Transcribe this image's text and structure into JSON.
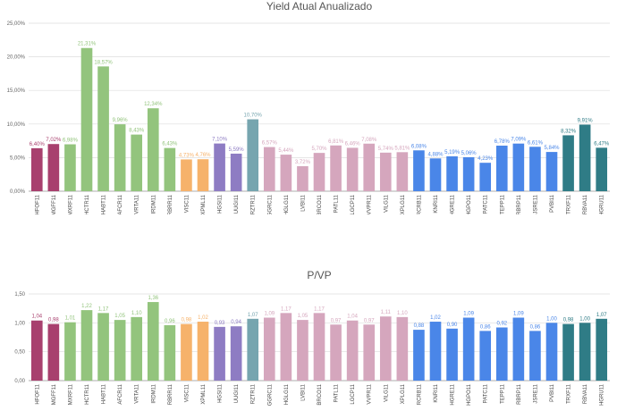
{
  "colors": {
    "maroon": "#a8406e",
    "green": "#93c47d",
    "orange": "#f6b26b",
    "purple": "#8e7cc3",
    "teal_light": "#76a5af",
    "pink": "#d5a6bd",
    "blue": "#4a86e8",
    "teal_dark": "#2f7c86"
  },
  "chart_data": [
    {
      "type": "bar",
      "title": "Yield Atual Anualizado",
      "xlabel": "",
      "ylabel": "",
      "ylim": [
        0,
        25
      ],
      "yticks": [
        "0,00%",
        "5,00%",
        "10,00%",
        "15,00%",
        "20,00%",
        "25,00%"
      ],
      "grid": true,
      "categories": [
        "HFOF11",
        "MGFF11",
        "MXRF11",
        "HCTR11",
        "HABT11",
        "AFCR11",
        "VRTA11",
        "IRDM11",
        "RBRR11",
        "VISC11",
        "XPML11",
        "HGSI11",
        "UUGI11",
        "RZTR11",
        "GGRC11",
        "HGLG11",
        "LVBI11",
        "BRCO11",
        "PATL11",
        "LGCP11",
        "VVPR11",
        "VILG11",
        "XPLG11",
        "RCRB11",
        "KNRI11",
        "HGRE11",
        "HGPO11",
        "PATC11",
        "TEPP11",
        "RBRP11",
        "JSRE11",
        "PVBI11",
        "TRXF11",
        "RBVA11",
        "HGRU11"
      ],
      "values": [
        6.4,
        7.02,
        6.98,
        21.31,
        18.57,
        9.96,
        8.43,
        12.34,
        6.43,
        4.73,
        4.76,
        7.1,
        5.59,
        10.7,
        6.57,
        5.44,
        3.72,
        5.7,
        6.81,
        6.46,
        7.08,
        5.74,
        5.81,
        6.08,
        4.88,
        5.19,
        5.06,
        4.23,
        6.78,
        7.09,
        6.61,
        5.84,
        8.32,
        9.91,
        6.47
      ],
      "labels": [
        "6,40%",
        "7,02%",
        "6,98%",
        "21,31%",
        "18,57%",
        "9,96%",
        "8,43%",
        "12,34%",
        "6,43%",
        "4,73%",
        "4,76%",
        "7,10%",
        "5,59%",
        "10,70%",
        "6,57%",
        "5,44%",
        "3,72%",
        "5,70%",
        "6,81%",
        "6,46%",
        "7,08%",
        "5,74%",
        "5,81%",
        "6,08%",
        "4,88%",
        "5,19%",
        "5,06%",
        "4,23%",
        "6,78%",
        "7,09%",
        "6,61%",
        "5,84%",
        "8,32%",
        "9,91%",
        "6,47%"
      ],
      "bar_color_groups": [
        "maroon",
        "maroon",
        "green",
        "green",
        "green",
        "green",
        "green",
        "green",
        "green",
        "orange",
        "orange",
        "purple",
        "purple",
        "teal_light",
        "pink",
        "pink",
        "pink",
        "pink",
        "pink",
        "pink",
        "pink",
        "pink",
        "pink",
        "blue",
        "blue",
        "blue",
        "blue",
        "blue",
        "blue",
        "blue",
        "blue",
        "blue",
        "teal_dark",
        "teal_dark",
        "teal_dark"
      ]
    },
    {
      "type": "bar",
      "title": "P/VP",
      "xlabel": "",
      "ylabel": "",
      "ylim": [
        0,
        1.5
      ],
      "yticks": [
        "0,00",
        "0,50",
        "1,00",
        "1,50"
      ],
      "grid": true,
      "categories": [
        "HFOF11",
        "MGFF11",
        "MXRF11",
        "HCTR11",
        "HABT11",
        "AFCR11",
        "VRTA11",
        "IRDM11",
        "RBRR11",
        "VISC11",
        "XPML11",
        "HGSI11",
        "UUGI11",
        "RZTR11",
        "GGRC11",
        "HGLG11",
        "LVBI11",
        "BRCO11",
        "PATL11",
        "LGCP11",
        "VVPR11",
        "VILG11",
        "XPLG11",
        "RCRB11",
        "KNRI11",
        "HGRE11",
        "HGPO11",
        "PATC11",
        "TEPP11",
        "RBRP11",
        "JSRE11",
        "PVBI11",
        "TRXF11",
        "RBVA11",
        "HGRU11"
      ],
      "values": [
        1.04,
        0.98,
        1.01,
        1.22,
        1.17,
        1.05,
        1.1,
        1.36,
        0.96,
        0.98,
        1.02,
        0.93,
        0.94,
        1.07,
        1.09,
        1.17,
        1.05,
        1.17,
        0.97,
        1.04,
        0.97,
        1.11,
        1.1,
        0.88,
        1.02,
        0.9,
        1.09,
        0.86,
        0.92,
        1.09,
        0.86,
        1.0,
        0.98,
        1.0,
        1.07
      ],
      "labels": [
        "1,04",
        "0,98",
        "1,01",
        "1,22",
        "1,17",
        "1,05",
        "1,10",
        "1,36",
        "0,96",
        "0,98",
        "1,02",
        "0,93",
        "0,94",
        "1,07",
        "1,09",
        "1,17",
        "1,05",
        "1,17",
        "0,97",
        "1,04",
        "0,97",
        "1,11",
        "1,10",
        "0,88",
        "1,02",
        "0,90",
        "1,09",
        "0,86",
        "0,92",
        "1,09",
        "0,86",
        "1,00",
        "0,98",
        "1,00",
        "1,07"
      ],
      "bar_color_groups": [
        "maroon",
        "maroon",
        "green",
        "green",
        "green",
        "green",
        "green",
        "green",
        "green",
        "orange",
        "orange",
        "purple",
        "purple",
        "teal_light",
        "pink",
        "pink",
        "pink",
        "pink",
        "pink",
        "pink",
        "pink",
        "pink",
        "pink",
        "blue",
        "blue",
        "blue",
        "blue",
        "blue",
        "blue",
        "blue",
        "blue",
        "blue",
        "teal_dark",
        "teal_dark",
        "teal_dark"
      ]
    }
  ]
}
